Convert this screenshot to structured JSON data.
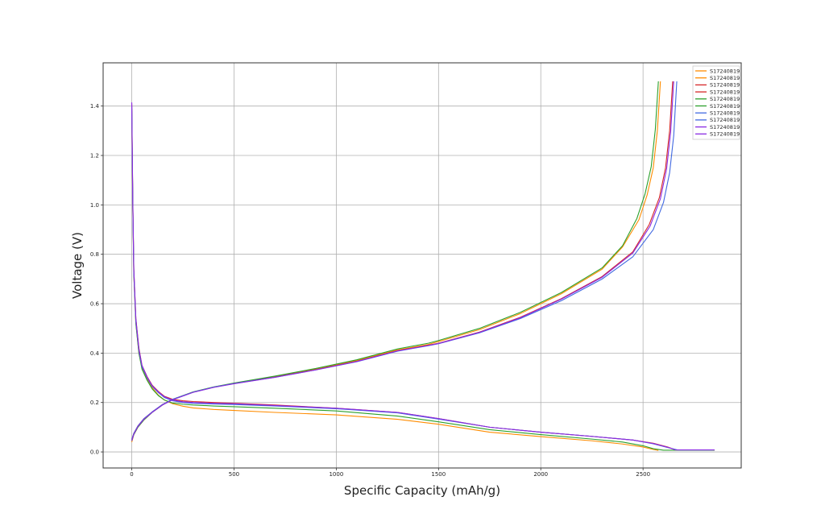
{
  "chart_data": {
    "type": "line",
    "title": "",
    "xlabel": "Specific Capacity (mAh/g)",
    "ylabel": "Voltage (V)",
    "xlim": [
      -140,
      2980
    ],
    "ylim": [
      -0.065,
      1.575
    ],
    "xticks": [
      0,
      500,
      1000,
      1500,
      2000,
      2500
    ],
    "yticks": [
      0.0,
      0.2,
      0.4,
      0.6,
      0.8,
      1.0,
      1.2,
      1.4
    ],
    "xtick_labels": [
      "0",
      "500",
      "1000",
      "1500",
      "2000",
      "2500"
    ],
    "ytick_labels": [
      "0.0",
      "0.2",
      "0.4",
      "0.6",
      "0.8",
      "1.0",
      "1.2",
      "1.4"
    ],
    "grid": true,
    "legend_position": "top-right",
    "series": [
      {
        "name": "S17240819",
        "color": "#ff8c00",
        "kind": "discharge",
        "x": [
          0,
          5,
          10,
          20,
          35,
          50,
          75,
          100,
          130,
          160,
          200,
          250,
          300,
          400,
          500,
          700,
          1000,
          1300,
          1500,
          1750,
          2000,
          2250,
          2400,
          2500,
          2550,
          2575
        ],
        "y": [
          1.38,
          1.0,
          0.72,
          0.52,
          0.4,
          0.34,
          0.295,
          0.26,
          0.23,
          0.21,
          0.195,
          0.185,
          0.178,
          0.172,
          0.168,
          0.16,
          0.15,
          0.132,
          0.112,
          0.08,
          0.062,
          0.045,
          0.032,
          0.02,
          0.01,
          0.006
        ]
      },
      {
        "name": "S17240819",
        "color": "#ff8c00",
        "kind": "charge",
        "x": [
          0,
          10,
          30,
          60,
          100,
          150,
          200,
          300,
          400,
          500,
          700,
          900,
          1100,
          1300,
          1450,
          1500,
          1700,
          1900,
          2100,
          2300,
          2400,
          2480,
          2520,
          2550,
          2570,
          2585
        ],
        "y": [
          0.04,
          0.07,
          0.1,
          0.13,
          0.16,
          0.19,
          0.212,
          0.242,
          0.262,
          0.278,
          0.305,
          0.335,
          0.37,
          0.413,
          0.435,
          0.447,
          0.495,
          0.56,
          0.64,
          0.74,
          0.83,
          0.94,
          1.04,
          1.15,
          1.3,
          1.5
        ]
      },
      {
        "name": "S17240819",
        "color": "#d62728",
        "kind": "discharge",
        "x": [
          0,
          5,
          10,
          20,
          35,
          50,
          75,
          100,
          130,
          160,
          200,
          250,
          300,
          400,
          500,
          700,
          1000,
          1300,
          1500,
          1750,
          2000,
          2250,
          2450,
          2550,
          2620,
          2660
        ],
        "y": [
          1.41,
          1.02,
          0.74,
          0.54,
          0.42,
          0.35,
          0.305,
          0.27,
          0.245,
          0.225,
          0.213,
          0.207,
          0.204,
          0.2,
          0.197,
          0.19,
          0.177,
          0.16,
          0.135,
          0.1,
          0.08,
          0.063,
          0.048,
          0.035,
          0.02,
          0.008
        ]
      },
      {
        "name": "S17240819",
        "color": "#d62728",
        "kind": "charge",
        "x": [
          0,
          10,
          30,
          60,
          100,
          150,
          200,
          300,
          400,
          500,
          700,
          900,
          1100,
          1300,
          1450,
          1500,
          1700,
          1900,
          2100,
          2300,
          2450,
          2530,
          2580,
          2610,
          2630,
          2645
        ],
        "y": [
          0.05,
          0.075,
          0.105,
          0.135,
          0.162,
          0.192,
          0.213,
          0.242,
          0.262,
          0.277,
          0.303,
          0.333,
          0.367,
          0.41,
          0.432,
          0.44,
          0.485,
          0.545,
          0.62,
          0.71,
          0.81,
          0.92,
          1.03,
          1.15,
          1.3,
          1.5
        ]
      },
      {
        "name": "S17240819",
        "color": "#2ca02c",
        "kind": "discharge",
        "x": [
          0,
          5,
          10,
          20,
          35,
          50,
          75,
          100,
          130,
          160,
          200,
          250,
          300,
          400,
          500,
          700,
          1000,
          1300,
          1500,
          1750,
          2000,
          2250,
          2400,
          2500,
          2550,
          2600,
          2850
        ],
        "y": [
          1.39,
          1.0,
          0.72,
          0.52,
          0.4,
          0.335,
          0.29,
          0.255,
          0.228,
          0.21,
          0.198,
          0.193,
          0.19,
          0.186,
          0.183,
          0.177,
          0.166,
          0.145,
          0.122,
          0.09,
          0.07,
          0.052,
          0.04,
          0.025,
          0.013,
          0.007,
          0.007
        ]
      },
      {
        "name": "S17240819",
        "color": "#2ca02c",
        "kind": "charge",
        "x": [
          0,
          10,
          30,
          60,
          100,
          150,
          200,
          300,
          400,
          500,
          700,
          900,
          1100,
          1300,
          1450,
          1500,
          1700,
          1900,
          2100,
          2300,
          2400,
          2470,
          2510,
          2540,
          2560,
          2575
        ],
        "y": [
          0.045,
          0.07,
          0.1,
          0.13,
          0.16,
          0.19,
          0.213,
          0.243,
          0.263,
          0.279,
          0.307,
          0.338,
          0.373,
          0.417,
          0.44,
          0.451,
          0.5,
          0.565,
          0.645,
          0.745,
          0.835,
          0.945,
          1.045,
          1.155,
          1.305,
          1.5
        ]
      },
      {
        "name": "S17240819",
        "color": "#4169e1",
        "kind": "discharge",
        "x": [
          0,
          5,
          10,
          20,
          35,
          50,
          75,
          100,
          130,
          160,
          200,
          250,
          300,
          400,
          500,
          700,
          1000,
          1300,
          1500,
          1750,
          2000,
          2250,
          2450,
          2550,
          2620,
          2670,
          2840
        ],
        "y": [
          1.4,
          1.01,
          0.73,
          0.53,
          0.41,
          0.345,
          0.3,
          0.265,
          0.24,
          0.22,
          0.207,
          0.2,
          0.197,
          0.194,
          0.192,
          0.186,
          0.175,
          0.158,
          0.133,
          0.1,
          0.08,
          0.063,
          0.048,
          0.033,
          0.018,
          0.008,
          0.008
        ]
      },
      {
        "name": "S17240819",
        "color": "#4169e1",
        "kind": "charge",
        "x": [
          0,
          10,
          30,
          60,
          100,
          150,
          200,
          300,
          400,
          500,
          700,
          900,
          1100,
          1300,
          1450,
          1500,
          1700,
          1900,
          2100,
          2300,
          2450,
          2550,
          2600,
          2630,
          2650,
          2665
        ],
        "y": [
          0.05,
          0.075,
          0.105,
          0.135,
          0.162,
          0.192,
          0.213,
          0.242,
          0.262,
          0.277,
          0.302,
          0.332,
          0.365,
          0.408,
          0.43,
          0.438,
          0.482,
          0.54,
          0.612,
          0.7,
          0.79,
          0.9,
          1.01,
          1.13,
          1.28,
          1.5
        ]
      },
      {
        "name": "S17240819",
        "color": "#8a2be2",
        "kind": "discharge",
        "x": [
          0,
          5,
          10,
          20,
          35,
          50,
          75,
          100,
          130,
          160,
          200,
          250,
          300,
          400,
          500,
          700,
          1000,
          1300,
          1500,
          1750,
          2000,
          2250,
          2450,
          2550,
          2620,
          2660,
          2850
        ],
        "y": [
          1.415,
          1.02,
          0.74,
          0.54,
          0.415,
          0.35,
          0.303,
          0.268,
          0.243,
          0.223,
          0.21,
          0.203,
          0.2,
          0.197,
          0.195,
          0.188,
          0.177,
          0.16,
          0.135,
          0.1,
          0.08,
          0.063,
          0.048,
          0.034,
          0.019,
          0.008,
          0.008
        ]
      },
      {
        "name": "S17240819",
        "color": "#8a2be2",
        "kind": "charge",
        "x": [
          0,
          10,
          30,
          60,
          100,
          150,
          200,
          300,
          400,
          500,
          700,
          900,
          1100,
          1300,
          1450,
          1500,
          1700,
          1900,
          2100,
          2300,
          2450,
          2535,
          2585,
          2615,
          2635,
          2650
        ],
        "y": [
          0.045,
          0.072,
          0.103,
          0.133,
          0.16,
          0.19,
          0.211,
          0.241,
          0.261,
          0.276,
          0.302,
          0.332,
          0.366,
          0.409,
          0.431,
          0.439,
          0.484,
          0.543,
          0.618,
          0.707,
          0.805,
          0.915,
          1.025,
          1.145,
          1.295,
          1.5
        ]
      }
    ],
    "legend": [
      {
        "label": "S17240819",
        "color": "#ff8c00"
      },
      {
        "label": "S17240819",
        "color": "#ff8c00"
      },
      {
        "label": "S17240819",
        "color": "#d62728"
      },
      {
        "label": "S17240819",
        "color": "#d62728"
      },
      {
        "label": "S17240819",
        "color": "#2ca02c"
      },
      {
        "label": "S17240819",
        "color": "#2ca02c"
      },
      {
        "label": "S17240819",
        "color": "#4169e1"
      },
      {
        "label": "S17240819",
        "color": "#4169e1"
      },
      {
        "label": "S17240819",
        "color": "#8a2be2"
      },
      {
        "label": "S17240819",
        "color": "#8a2be2"
      }
    ]
  }
}
